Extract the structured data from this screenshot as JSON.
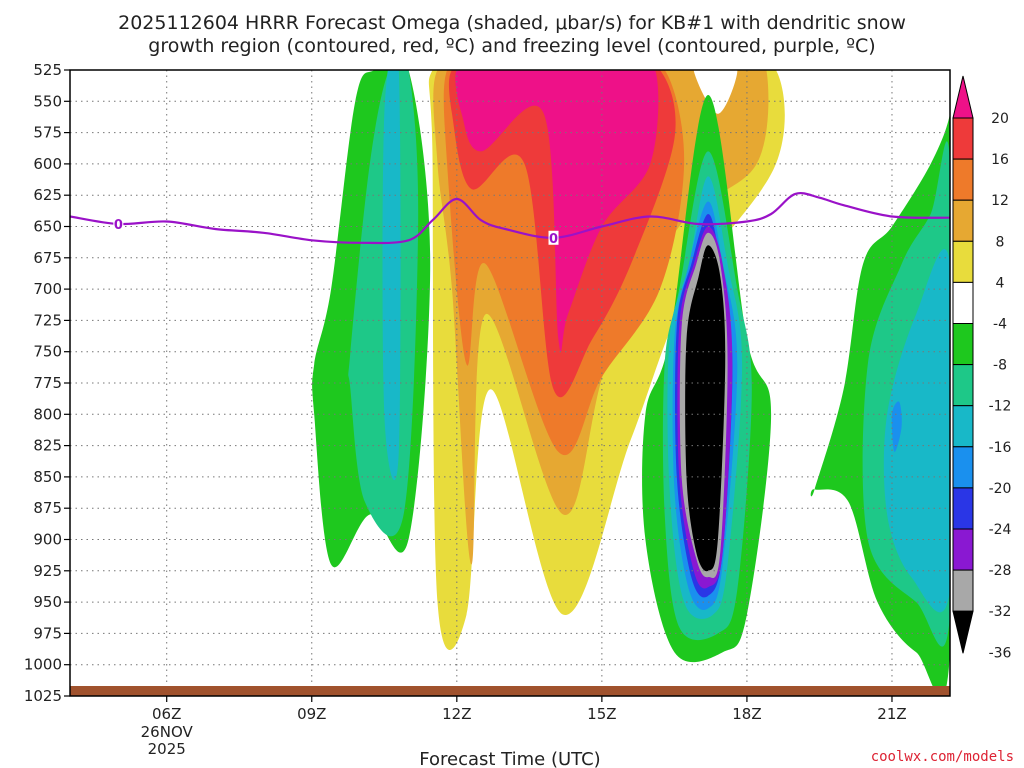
{
  "chart_data": {
    "type": "heatmap",
    "title_line1": "2025112604 HRRR Forecast Omega (shaded, μbar/s) for KB#1 with dendritic snow",
    "title_line2": "growth region (contoured, red, ºC) and freezing level (contoured, purple, ºC)",
    "xlabel": "Forecast Time (UTC)",
    "credit": "coolwx.com/models",
    "x_range_hours": [
      4,
      22.2
    ],
    "x_ticks": [
      {
        "hour": 6,
        "label": "06Z",
        "sub1": "26NOV",
        "sub2": "2025"
      },
      {
        "hour": 9,
        "label": "09Z",
        "sub1": "",
        "sub2": ""
      },
      {
        "hour": 12,
        "label": "12Z",
        "sub1": "",
        "sub2": ""
      },
      {
        "hour": 15,
        "label": "15Z",
        "sub1": "",
        "sub2": ""
      },
      {
        "hour": 18,
        "label": "18Z",
        "sub1": "",
        "sub2": ""
      },
      {
        "hour": 21,
        "label": "21Z",
        "sub1": "",
        "sub2": ""
      }
    ],
    "y_range_hpa": [
      1025,
      525
    ],
    "y_ticks": [
      525,
      550,
      575,
      600,
      625,
      650,
      675,
      700,
      725,
      750,
      775,
      800,
      825,
      850,
      875,
      900,
      925,
      950,
      975,
      1000,
      1025
    ],
    "grid": true,
    "colorbar": {
      "labels": [
        "20",
        "16",
        "12",
        "8",
        "4",
        "-4",
        "-8",
        "-12",
        "-16",
        "-20",
        "-24",
        "-28",
        "-32",
        "-36"
      ],
      "colors": [
        "#ee1188",
        "#ee3a3a",
        "#ee7a2a",
        "#e6a832",
        "#e8dc3c",
        "#ffffff",
        "#1ec81e",
        "#1ec888",
        "#18b8c8",
        "#1a90ee",
        "#2a36e6",
        "#8a18d2",
        "#a8a8a8",
        "#000000"
      ]
    },
    "omega_fields": [
      {
        "name": "green-west",
        "value": -6,
        "color": "#1ec81e",
        "x_hours": [
          9.05,
          9.4,
          9.9,
          10.3,
          11.0,
          11.45,
          11.0,
          10.2,
          9.4,
          9.05
        ],
        "p_hpa": [
          760,
          700,
          550,
          525,
          525,
          680,
          900,
          880,
          920,
          800
        ]
      },
      {
        "name": "seagreen-west",
        "value": -10,
        "color": "#1ec888",
        "x_hours": [
          9.8,
          10.2,
          10.6,
          11.0,
          11.2,
          10.9,
          10.1,
          9.8
        ],
        "p_hpa": [
          750,
          600,
          525,
          525,
          650,
          880,
          870,
          780
        ]
      },
      {
        "name": "teal-west",
        "value": -14,
        "color": "#18b8c8",
        "x_hours": [
          10.5,
          10.8,
          10.8,
          10.5
        ],
        "p_hpa": [
          560,
          525,
          830,
          800
        ]
      },
      {
        "name": "yellow-center",
        "value": 6,
        "color": "#e8dc3c",
        "x_hours": [
          11.5,
          12.5,
          13.3,
          14.5,
          15.5,
          16.5,
          17.5,
          18.6,
          18.6,
          16.8,
          15.6,
          14.2,
          12.7,
          12.2,
          11.6,
          11.5
        ],
        "p_hpa": [
          525,
          525,
          525,
          525,
          525,
          525,
          525,
          525,
          600,
          700,
          820,
          960,
          780,
          960,
          950,
          600
        ]
      },
      {
        "name": "goldenrod-center",
        "value": 10,
        "color": "#e6a832",
        "x_hours": [
          11.6,
          12.6,
          13.5,
          14.4,
          15.3,
          16.1,
          17.8,
          18.4,
          18.2,
          16.6,
          15.1,
          14.2,
          12.6,
          12.3,
          11.9,
          11.6
        ],
        "p_hpa": [
          525,
          525,
          525,
          525,
          525,
          525,
          525,
          525,
          600,
          650,
          760,
          880,
          720,
          920,
          700,
          600
        ]
      },
      {
        "name": "orange-center",
        "value": 14,
        "color": "#ee7a2a",
        "x_hours": [
          11.8,
          12.5,
          13.5,
          14.6,
          15.4,
          16.3,
          16.7,
          16.2,
          15.0,
          14.1,
          12.6,
          12.2,
          11.8
        ],
        "p_hpa": [
          525,
          525,
          525,
          525,
          525,
          525,
          600,
          700,
          770,
          830,
          680,
          760,
          600
        ]
      },
      {
        "name": "red-center",
        "value": 18,
        "color": "#ee3a3a",
        "x_hours": [
          11.9,
          12.5,
          13.7,
          14.5,
          15.4,
          16.2,
          16.5,
          15.6,
          14.8,
          14.0,
          13.4,
          12.3,
          11.9
        ],
        "p_hpa": [
          525,
          525,
          525,
          525,
          525,
          525,
          580,
          680,
          740,
          780,
          600,
          620,
          560
        ]
      },
      {
        "name": "magenta-center",
        "value": 22,
        "color": "#ee1188",
        "x_hours": [
          12.0,
          12.6,
          13.6,
          14.5,
          15.3,
          16.1,
          16.0,
          15.0,
          14.3,
          14.1,
          13.8,
          12.5,
          12.1
        ],
        "p_hpa": [
          525,
          525,
          525,
          525,
          525,
          525,
          600,
          650,
          720,
          740,
          560,
          590,
          560
        ]
      },
      {
        "name": "white-ne",
        "value": 0,
        "color": "#ffffff",
        "x_hours": [
          16.9,
          17.3,
          17.8,
          17.4
        ],
        "p_hpa": [
          525,
          525,
          525,
          560
        ]
      },
      {
        "name": "green-east",
        "value": -6,
        "color": "#1ec81e",
        "x_hours": [
          15.9,
          16.4,
          17.2,
          18.0,
          18.5,
          18.0,
          17.5,
          16.5,
          15.9
        ],
        "p_hpa": [
          800,
          740,
          545,
          740,
          800,
          960,
          990,
          990,
          900
        ]
      },
      {
        "name": "seagreen-east",
        "value": -10,
        "color": "#1ec888",
        "x_hours": [
          16.3,
          16.6,
          17.2,
          17.8,
          18.1,
          17.8,
          17.4,
          16.6,
          16.3
        ],
        "p_hpa": [
          760,
          700,
          590,
          700,
          780,
          940,
          975,
          970,
          880
        ]
      },
      {
        "name": "teal-east",
        "value": -14,
        "color": "#18b8c8",
        "x_hours": [
          16.4,
          16.8,
          17.2,
          17.6,
          17.9,
          17.6,
          17.3,
          16.7,
          16.4
        ],
        "p_hpa": [
          740,
          680,
          610,
          680,
          760,
          920,
          960,
          950,
          860
        ]
      },
      {
        "name": "dodgerblue-east",
        "value": -18,
        "color": "#1a90ee",
        "x_hours": [
          16.5,
          16.8,
          17.2,
          17.5,
          17.8,
          17.5,
          17.2,
          16.8,
          16.5
        ],
        "p_hpa": [
          740,
          680,
          630,
          680,
          760,
          920,
          955,
          940,
          860
        ]
      },
      {
        "name": "blue-east",
        "value": -22,
        "color": "#2a36e6",
        "x_hours": [
          16.55,
          16.85,
          17.2,
          17.45,
          17.7,
          17.5,
          17.2,
          16.85,
          16.55
        ],
        "p_hpa": [
          730,
          680,
          640,
          680,
          760,
          910,
          945,
          930,
          850
        ]
      },
      {
        "name": "purple-east",
        "value": -26,
        "color": "#8a18d2",
        "x_hours": [
          16.6,
          16.9,
          17.2,
          17.5,
          17.7,
          17.5,
          17.2,
          16.9,
          16.6
        ],
        "p_hpa": [
          730,
          680,
          650,
          680,
          760,
          910,
          938,
          925,
          850
        ]
      },
      {
        "name": "gray-east",
        "value": -30,
        "color": "#a8a8a8",
        "x_hours": [
          16.65,
          16.95,
          17.2,
          17.45,
          17.6,
          17.45,
          17.2,
          16.95,
          16.65
        ],
        "p_hpa": [
          730,
          680,
          655,
          680,
          760,
          910,
          930,
          915,
          850
        ]
      },
      {
        "name": "black-core",
        "value": -36,
        "color": "#000000",
        "x_hours": [
          16.75,
          17.0,
          17.2,
          17.45,
          17.55,
          17.4,
          17.2,
          16.95,
          16.75
        ],
        "p_hpa": [
          740,
          690,
          665,
          690,
          760,
          900,
          925,
          910,
          850
        ]
      },
      {
        "name": "green-far-east",
        "value": -6,
        "color": "#1ec81e",
        "x_hours": [
          19.4,
          20.0,
          20.4,
          21.0,
          21.8,
          22.2,
          22.2,
          22.2,
          21.5,
          20.7,
          20.1,
          19.4
        ],
        "p_hpa": [
          860,
          780,
          680,
          650,
          600,
          560,
          525,
          990,
          990,
          950,
          870,
          860
        ]
      },
      {
        "name": "seagreen-far-east",
        "value": -10,
        "color": "#1ec888",
        "x_hours": [
          20.5,
          21.2,
          21.8,
          22.2,
          22.2,
          21.5,
          20.5
        ],
        "p_hpa": [
          760,
          680,
          640,
          600,
          960,
          950,
          900
        ]
      },
      {
        "name": "teal-far-east",
        "value": -14,
        "color": "#18b8c8",
        "x_hours": [
          20.9,
          21.5,
          22.2,
          22.2,
          21.4,
          20.9
        ],
        "p_hpa": [
          800,
          720,
          680,
          940,
          930,
          880
        ]
      },
      {
        "name": "dodgerblue-far-east",
        "value": -18,
        "color": "#1a90ee",
        "x_hours": [
          21.0,
          21.15,
          21.2,
          21.05
        ],
        "p_hpa": [
          800,
          790,
          810,
          830
        ]
      }
    ],
    "freezing_level": {
      "label": "0",
      "color": "#9a12c8",
      "x_hours": [
        4.0,
        5.0,
        6.0,
        7.0,
        8.0,
        9.0,
        10.0,
        11.0,
        11.5,
        12.0,
        12.5,
        13.0,
        14.0,
        15.0,
        16.0,
        17.0,
        18.0,
        18.5,
        19.0,
        19.5,
        20.0,
        21.0,
        22.2
      ],
      "p_hpa": [
        642,
        648,
        646,
        652,
        655,
        661,
        663,
        661,
        645,
        628,
        645,
        652,
        659,
        650,
        642,
        648,
        646,
        640,
        624,
        627,
        633,
        642,
        643
      ],
      "label_positions_hours": [
        5.0,
        14.0
      ]
    }
  }
}
